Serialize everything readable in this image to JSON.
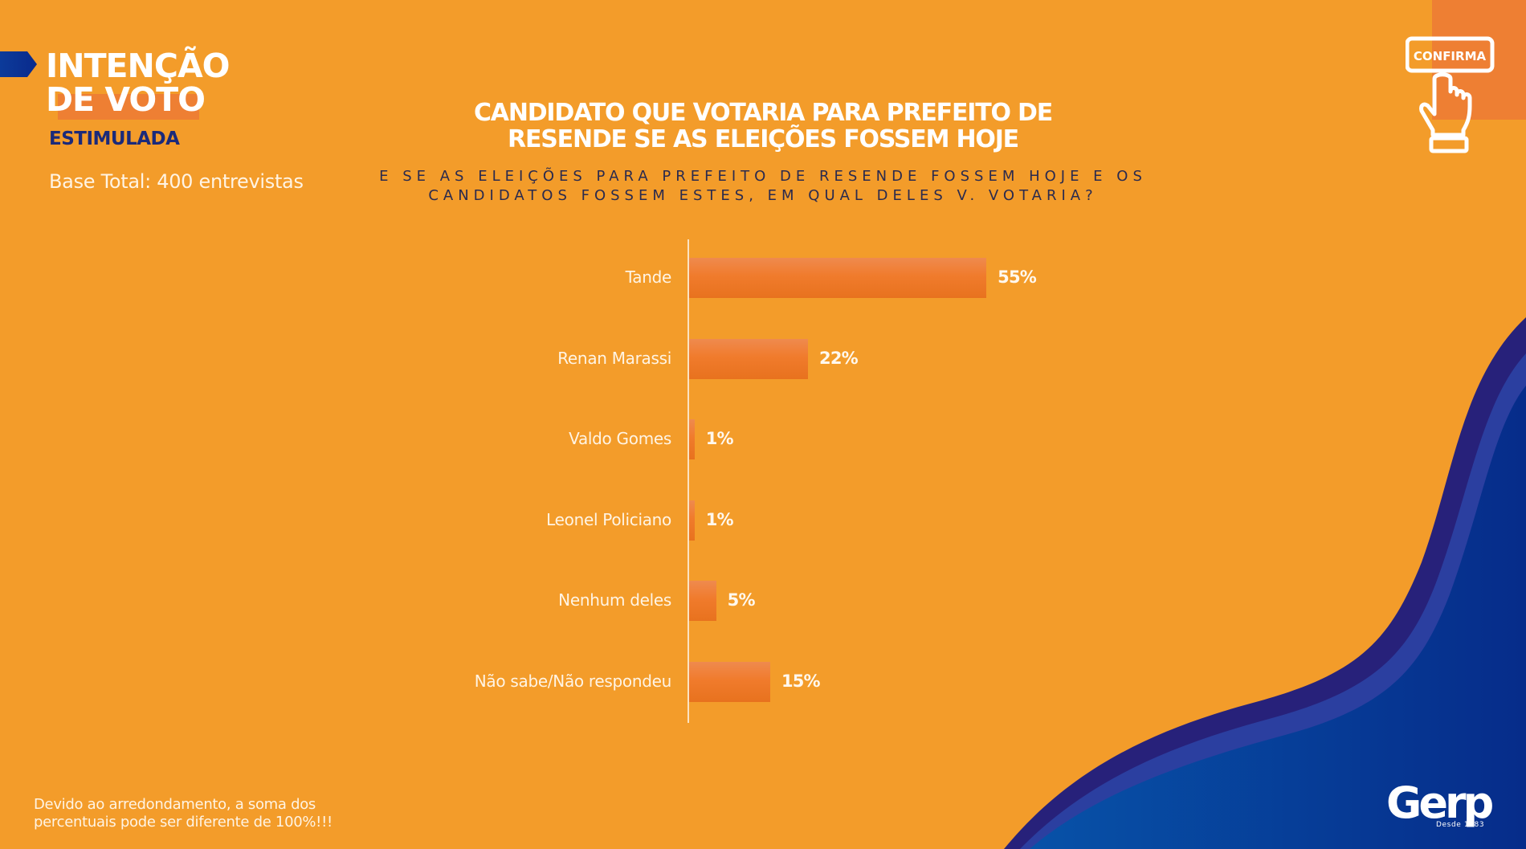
{
  "header": {
    "title_line1": "INTENÇÃO",
    "title_line2": "DE VOTO",
    "subtitle": "ESTIMULADA",
    "base": "Base Total: 400 entrevistas"
  },
  "confirma_icon": {
    "label": "CONFIRMA",
    "icon": "hand-pointer-icon"
  },
  "footer": {
    "note_line1": "Devido ao arredondamento, a soma dos",
    "note_line2": "percentuais pode ser diferente de 100%!!!",
    "logo": "Gerp",
    "logo_tagline": "Desde 1983"
  },
  "colors": {
    "background": "#F39C2A",
    "accent_orange": "#EE7F33",
    "bar": "#F07B2C",
    "navy": "#1B2A7A",
    "blue": "#0A3D91"
  },
  "chart_data": {
    "type": "bar",
    "orientation": "horizontal",
    "title_line1": "CANDIDATO QUE VOTARIA PARA PREFEITO DE",
    "title_line2": "RESENDE SE AS ELEIÇÕES FOSSEM HOJE",
    "question_line1": "E SE AS ELEIÇÕES PARA PREFEITO DE RESENDE FOSSEM HOJE E OS",
    "question_line2": "CANDIDATOS FOSSEM ESTES, EM QUAL DELES V. VOTARIA?",
    "categories": [
      "Tande",
      "Renan Marassi",
      "Valdo Gomes",
      "Leonel Policiano",
      "Nenhum deles",
      "Não sabe/Não respondeu"
    ],
    "values": [
      55,
      22,
      1,
      1,
      5,
      15
    ],
    "value_labels": [
      "55%",
      "22%",
      "1%",
      "1%",
      "5%",
      "15%"
    ],
    "unit": "%",
    "xlabel": "",
    "ylabel": "",
    "xlim": [
      0,
      60
    ],
    "grid": false,
    "legend": "none"
  }
}
